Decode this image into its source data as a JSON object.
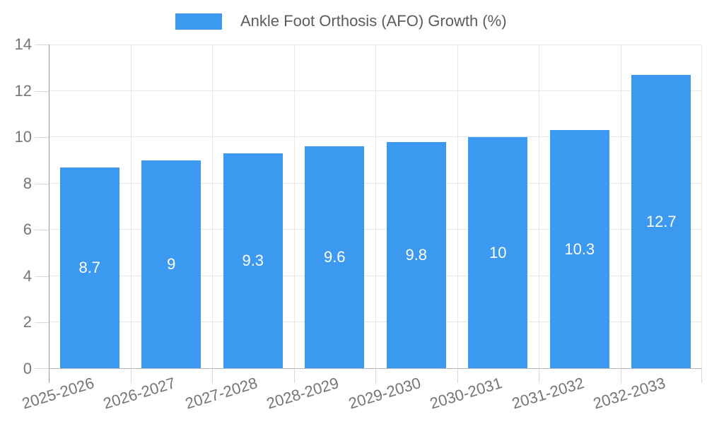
{
  "legend": {
    "label": "Ankle Foot Orthosis (AFO) Growth (%)"
  },
  "colors": {
    "bar": "#3b99f0",
    "grid": "#e6e6e6",
    "axis_line": "#9b9b9b",
    "baseline": "#b6b6b6",
    "tick": "#d9d9d9",
    "axis_text": "#757575",
    "legend_text": "#5c5c5c",
    "bar_label_text": "#ffffff"
  },
  "chart_data": {
    "type": "bar",
    "title": "Ankle Foot Orthosis (AFO) Growth (%)",
    "categories": [
      "2025-2026",
      "2026-2027",
      "2027-2028",
      "2028-2029",
      "2029-2030",
      "2030-2031",
      "2031-2032",
      "2032-2033"
    ],
    "values": [
      8.7,
      9,
      9.3,
      9.6,
      9.8,
      10,
      10.3,
      12.7
    ],
    "xlabel": "",
    "ylabel": "",
    "ylim": [
      0,
      14
    ],
    "y_ticks": [
      0,
      2,
      4,
      6,
      8,
      10,
      12,
      14
    ],
    "grid": true,
    "legend_position": "top",
    "bar_labels_inside": true,
    "x_label_rotation_deg": -17
  }
}
